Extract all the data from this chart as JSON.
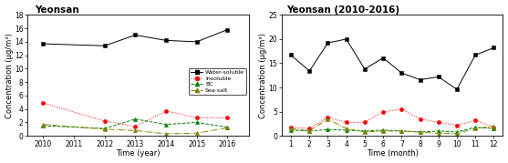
{
  "left": {
    "title": "Yeonsan",
    "xlabel": "Time (year)",
    "ylabel": "Concentration (μg/m³)",
    "ylim": [
      0,
      18
    ],
    "yticks": [
      0,
      2,
      4,
      6,
      8,
      10,
      12,
      14,
      16,
      18
    ],
    "years": [
      2010,
      2012,
      2013,
      2014,
      2015,
      2016
    ],
    "water_soluble": [
      13.7,
      13.4,
      15.0,
      14.2,
      14.0,
      15.8
    ],
    "insoluble": [
      4.9,
      2.2,
      1.4,
      3.7,
      2.7,
      2.7
    ],
    "bc": [
      1.5,
      1.1,
      2.5,
      1.7,
      2.0,
      1.3
    ],
    "sea_salt": [
      1.7,
      1.0,
      0.8,
      0.3,
      0.4,
      1.2
    ],
    "xticks": [
      2010,
      2011,
      2012,
      2013,
      2014,
      2015,
      2016
    ]
  },
  "right": {
    "title": "Yeonsan (2010-2016)",
    "xlabel": "Time (month)",
    "ylabel": "Concentration (μg/m³)",
    "ylim": [
      0,
      25
    ],
    "yticks": [
      0,
      5,
      10,
      15,
      20,
      25
    ],
    "months": [
      1,
      2,
      3,
      4,
      5,
      6,
      7,
      8,
      9,
      10,
      11,
      12
    ],
    "water_soluble": [
      16.7,
      13.4,
      19.2,
      20.0,
      13.8,
      16.1,
      13.0,
      11.6,
      12.2,
      9.6,
      16.7,
      18.2
    ],
    "insoluble": [
      1.8,
      1.5,
      3.8,
      2.8,
      2.8,
      5.0,
      5.5,
      3.5,
      2.8,
      2.2,
      3.2,
      1.8
    ],
    "bc": [
      1.2,
      1.0,
      1.3,
      1.2,
      1.0,
      1.2,
      1.0,
      0.8,
      1.0,
      0.8,
      1.8,
      1.5
    ],
    "sea_salt": [
      1.5,
      1.0,
      3.5,
      1.5,
      0.8,
      1.0,
      1.0,
      0.8,
      0.5,
      0.5,
      1.5,
      2.0
    ]
  },
  "colors": {
    "water_soluble": "#000000",
    "insoluble": "#ff0000",
    "bc": "#008000",
    "sea_salt": "#808000"
  },
  "bg_color": "#ffffff"
}
